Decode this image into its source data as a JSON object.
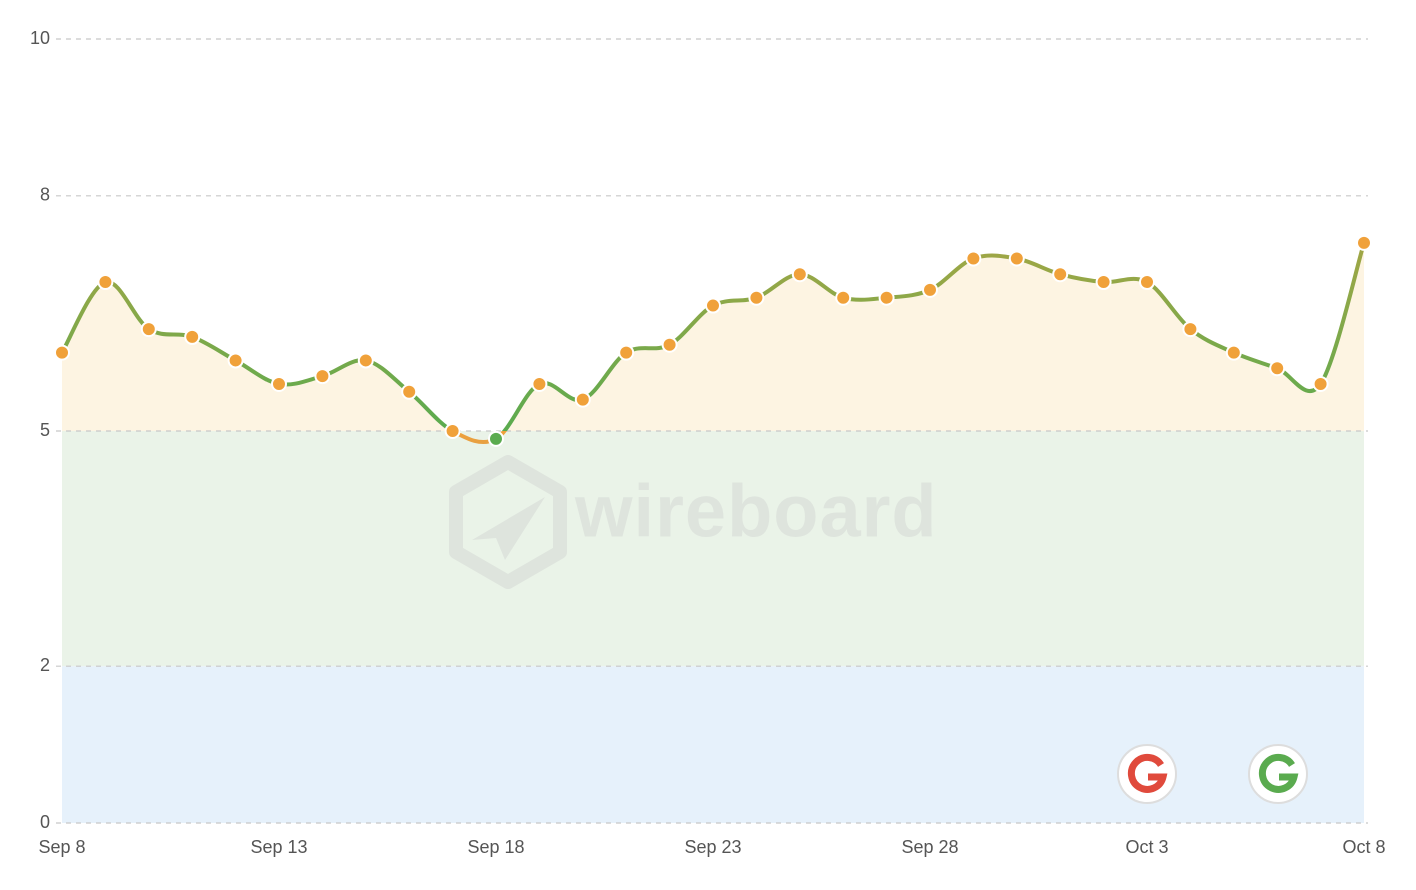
{
  "chart_data": {
    "type": "line",
    "categories": [
      "Sep 8",
      null,
      null,
      null,
      null,
      "Sep 13",
      null,
      null,
      null,
      null,
      "Sep 18",
      null,
      null,
      null,
      null,
      "Sep 23",
      null,
      null,
      null,
      null,
      "Sep 28",
      null,
      null,
      null,
      null,
      "Oct 3",
      null,
      null,
      null,
      null,
      "Oct 8"
    ],
    "values": [
      6.0,
      6.9,
      6.3,
      6.2,
      5.9,
      5.6,
      5.7,
      5.9,
      5.5,
      5.0,
      4.9,
      5.6,
      5.4,
      6.0,
      6.1,
      6.6,
      6.7,
      7.0,
      6.7,
      6.7,
      6.8,
      7.2,
      7.2,
      7.0,
      6.9,
      6.9,
      6.3,
      6.0,
      5.8,
      5.6,
      7.4
    ],
    "ylim": [
      0,
      10
    ],
    "yticks": [
      0,
      2,
      5,
      8,
      10
    ],
    "grid": true,
    "bands": [
      {
        "from": 0,
        "to": 2,
        "color": "#e6f1fb",
        "line": "#4a90d9"
      },
      {
        "from": 2,
        "to": 5,
        "color": "#eaf3e8",
        "line": "#5aab4f"
      },
      {
        "from": 5,
        "to": 10,
        "color": "#fdf4e2",
        "line": "#f0a13a",
        "under_line": true
      }
    ],
    "watermark": "wireboard"
  }
}
